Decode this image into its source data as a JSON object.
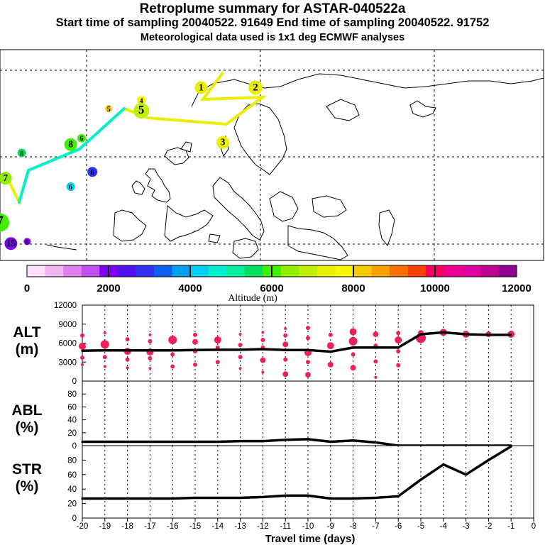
{
  "header": {
    "title": "Retroplume summary for ASTAR-040522a",
    "subtitle": "Start time of sampling 20040522. 91649     End time of sampling 20040522. 91752",
    "met": "Meteorological data used is 1x1 deg ECMWF analyses"
  },
  "colorbar": {
    "colors": [
      "#fce0fc",
      "#f0b4f0",
      "#e080f0",
      "#c050f0",
      "#8000f0",
      "#5010f0",
      "#3030f0",
      "#1060f0",
      "#00a0f0",
      "#00d0f0",
      "#00f0d0",
      "#00f0a0",
      "#00e060",
      "#40f000",
      "#90f000",
      "#c0f000",
      "#e8f000",
      "#f8f800",
      "#f8c800",
      "#f8a000",
      "#f87000",
      "#f84000",
      "#f80060",
      "#f00090",
      "#e000a0",
      "#c00090",
      "#900090"
    ],
    "labels": [
      "0",
      "2000",
      "4000",
      "6000",
      "8000",
      "10000",
      "12000"
    ],
    "title": "Altitude (m)"
  },
  "map": {
    "points": [
      {
        "label": "1",
        "color": "#e8f000",
        "r": 9,
        "lon": 0.37,
        "lat": 0.18
      },
      {
        "label": "2",
        "color": "#e8f000",
        "r": 10,
        "lon": 0.47,
        "lat": 0.18
      },
      {
        "label": "3",
        "color": "#e8f000",
        "r": 9,
        "lon": 0.41,
        "lat": 0.44
      },
      {
        "label": "4",
        "color": "#f8f800",
        "r": 6,
        "lon": 0.26,
        "lat": 0.24
      },
      {
        "label": "5",
        "color": "#c0f000",
        "r": 11,
        "lon": 0.26,
        "lat": 0.29
      },
      {
        "label": "5",
        "color": "#f8c800",
        "r": 5,
        "lon": 0.2,
        "lat": 0.28
      },
      {
        "label": "6",
        "color": "#40f000",
        "r": 6,
        "lon": 0.15,
        "lat": 0.42
      },
      {
        "label": "8",
        "color": "#40f000",
        "r": 9,
        "lon": 0.13,
        "lat": 0.45
      },
      {
        "label": "8",
        "color": "#00e060",
        "r": 6,
        "lon": 0.04,
        "lat": 0.49
      },
      {
        "label": "6",
        "color": "#3030f0",
        "r": 7,
        "lon": 0.17,
        "lat": 0.58
      },
      {
        "label": "6",
        "color": "#00d0f0",
        "r": 6,
        "lon": 0.13,
        "lat": 0.65
      },
      {
        "label": "7",
        "color": "#90f000",
        "r": 9,
        "lon": 0.01,
        "lat": 0.61
      },
      {
        "label": "7",
        "color": "#40f000",
        "r": 13,
        "lon": 0.0,
        "lat": 0.82
      },
      {
        "label": "15",
        "color": "#8000f0",
        "r": 9,
        "lon": 0.02,
        "lat": 0.92
      },
      {
        "label": "9",
        "color": "#8000f0",
        "r": 5,
        "lon": 0.05,
        "lat": 0.91
      }
    ]
  },
  "panel_labels": {
    "alt": [
      "ALT",
      "(m)"
    ],
    "abl": [
      "ABL",
      "(%)"
    ],
    "str": [
      "STR",
      "(%)"
    ]
  },
  "chart_data": [
    {
      "type": "line",
      "title": "ALT (m)",
      "xlabel": "Travel time (days)",
      "ylabel": "ALT (m)",
      "x": [
        -20,
        -19,
        -18,
        -17,
        -16,
        -15,
        -14,
        -13,
        -12,
        -11,
        -10,
        -9,
        -8,
        -7,
        -6,
        -5,
        -4,
        -3,
        -2,
        -1
      ],
      "xlim": [
        -20,
        0
      ],
      "ylim": [
        0,
        12000
      ],
      "yticks": [
        0,
        3000,
        6000,
        9000,
        12000
      ],
      "series": [
        {
          "name": "mean altitude",
          "values": [
            4800,
            4850,
            4850,
            4850,
            4850,
            4900,
            4950,
            4950,
            5050,
            4900,
            4900,
            4650,
            5300,
            5300,
            5300,
            7400,
            7700,
            7400,
            7300,
            7300
          ]
        }
      ],
      "scatter": [
        {
          "x": -20,
          "y": 7200,
          "r": 3
        },
        {
          "x": -20,
          "y": 5500,
          "r": 5
        },
        {
          "x": -20,
          "y": 3700,
          "r": 3
        },
        {
          "x": -20,
          "y": 2600,
          "r": 2
        },
        {
          "x": -19,
          "y": 7600,
          "r": 2
        },
        {
          "x": -19,
          "y": 5800,
          "r": 6
        },
        {
          "x": -19,
          "y": 3800,
          "r": 3
        },
        {
          "x": -19,
          "y": 2300,
          "r": 2
        },
        {
          "x": -18,
          "y": 6600,
          "r": 3
        },
        {
          "x": -18,
          "y": 4700,
          "r": 5
        },
        {
          "x": -18,
          "y": 3400,
          "r": 3
        },
        {
          "x": -18,
          "y": 2100,
          "r": 2
        },
        {
          "x": -17,
          "y": 7300,
          "r": 2
        },
        {
          "x": -17,
          "y": 6300,
          "r": 3
        },
        {
          "x": -17,
          "y": 4600,
          "r": 5
        },
        {
          "x": -17,
          "y": 3600,
          "r": 3
        },
        {
          "x": -17,
          "y": 2000,
          "r": 2
        },
        {
          "x": -16,
          "y": 6500,
          "r": 6
        },
        {
          "x": -16,
          "y": 4200,
          "r": 3
        },
        {
          "x": -16,
          "y": 2300,
          "r": 3
        },
        {
          "x": -15,
          "y": 7300,
          "r": 3
        },
        {
          "x": -15,
          "y": 6200,
          "r": 4
        },
        {
          "x": -15,
          "y": 4700,
          "r": 3
        },
        {
          "x": -15,
          "y": 2600,
          "r": 3
        },
        {
          "x": -14,
          "y": 6500,
          "r": 5
        },
        {
          "x": -14,
          "y": 5300,
          "r": 3
        },
        {
          "x": -14,
          "y": 3000,
          "r": 3
        },
        {
          "x": -13,
          "y": 7400,
          "r": 2
        },
        {
          "x": -13,
          "y": 5700,
          "r": 3
        },
        {
          "x": -13,
          "y": 3800,
          "r": 3
        },
        {
          "x": -13,
          "y": 2000,
          "r": 2
        },
        {
          "x": -12,
          "y": 7700,
          "r": 2
        },
        {
          "x": -12,
          "y": 6500,
          "r": 3
        },
        {
          "x": -12,
          "y": 5300,
          "r": 3
        },
        {
          "x": -12,
          "y": 3300,
          "r": 4
        },
        {
          "x": -12,
          "y": 1400,
          "r": 2
        },
        {
          "x": -11,
          "y": 8300,
          "r": 2
        },
        {
          "x": -11,
          "y": 7200,
          "r": 3
        },
        {
          "x": -11,
          "y": 5800,
          "r": 4
        },
        {
          "x": -11,
          "y": 3400,
          "r": 3
        },
        {
          "x": -11,
          "y": 1100,
          "r": 4
        },
        {
          "x": -10,
          "y": 8400,
          "r": 3
        },
        {
          "x": -10,
          "y": 6800,
          "r": 3
        },
        {
          "x": -10,
          "y": 4500,
          "r": 5
        },
        {
          "x": -10,
          "y": 3000,
          "r": 3
        },
        {
          "x": -10,
          "y": 1000,
          "r": 4
        },
        {
          "x": -9,
          "y": 7300,
          "r": 3
        },
        {
          "x": -9,
          "y": 5600,
          "r": 5
        },
        {
          "x": -9,
          "y": 2600,
          "r": 4
        },
        {
          "x": -8,
          "y": 7800,
          "r": 5
        },
        {
          "x": -8,
          "y": 6300,
          "r": 6
        },
        {
          "x": -8,
          "y": 4200,
          "r": 3
        },
        {
          "x": -8,
          "y": 2100,
          "r": 4
        },
        {
          "x": -7,
          "y": 7400,
          "r": 4
        },
        {
          "x": -7,
          "y": 5600,
          "r": 3
        },
        {
          "x": -7,
          "y": 3100,
          "r": 3
        },
        {
          "x": -7,
          "y": 600,
          "r": 2
        },
        {
          "x": -6,
          "y": 7600,
          "r": 3
        },
        {
          "x": -6,
          "y": 6500,
          "r": 5
        },
        {
          "x": -6,
          "y": 4700,
          "r": 3
        },
        {
          "x": -6,
          "y": 2500,
          "r": 3
        },
        {
          "x": -5,
          "y": 7600,
          "r": 4
        },
        {
          "x": -5,
          "y": 6800,
          "r": 7
        },
        {
          "x": -4,
          "y": 7700,
          "r": 5
        },
        {
          "x": -3,
          "y": 7400,
          "r": 5
        },
        {
          "x": -2,
          "y": 7400,
          "r": 4
        },
        {
          "x": -1,
          "y": 7400,
          "r": 5
        }
      ]
    },
    {
      "type": "line",
      "title": "ABL (%)",
      "ylabel": "ABL (%)",
      "x": [
        -20,
        -19,
        -18,
        -17,
        -16,
        -15,
        -14,
        -13,
        -12,
        -11,
        -10,
        -9,
        -8,
        -7,
        -6,
        -5,
        -4,
        -3,
        -2,
        -1
      ],
      "xlim": [
        -20,
        0
      ],
      "ylim": [
        0,
        100
      ],
      "yticks": [
        0,
        20,
        40,
        60,
        80,
        100
      ],
      "series": [
        {
          "name": "ABL fraction",
          "values": [
            6,
            6,
            6,
            6,
            6,
            6,
            6,
            7,
            7,
            9,
            10,
            6,
            8,
            5,
            0,
            0,
            0,
            0,
            0,
            0
          ]
        }
      ]
    },
    {
      "type": "line",
      "title": "STR (%)",
      "ylabel": "STR (%)",
      "x": [
        -20,
        -19,
        -18,
        -17,
        -16,
        -15,
        -14,
        -13,
        -12,
        -11,
        -10,
        -9,
        -8,
        -7,
        -6,
        -5,
        -4,
        -3,
        -2,
        -1
      ],
      "xlim": [
        -20,
        0
      ],
      "ylim": [
        0,
        100
      ],
      "yticks": [
        0,
        20,
        40,
        60,
        80,
        100
      ],
      "xtick_labels": [
        "-20",
        "-19",
        "-18",
        "-17",
        "-16",
        "-15",
        "-14",
        "-13",
        "-12",
        "-11",
        "-10",
        "-9",
        "-8",
        "-7",
        "-6",
        "-5",
        "-4",
        "-3",
        "-2",
        "-1",
        "0"
      ],
      "series": [
        {
          "name": "STR fraction",
          "values": [
            27,
            27,
            27,
            27,
            27,
            28,
            28,
            28,
            29,
            31,
            31,
            27,
            27,
            28,
            30,
            53,
            74,
            60,
            80,
            99
          ]
        }
      ]
    }
  ]
}
